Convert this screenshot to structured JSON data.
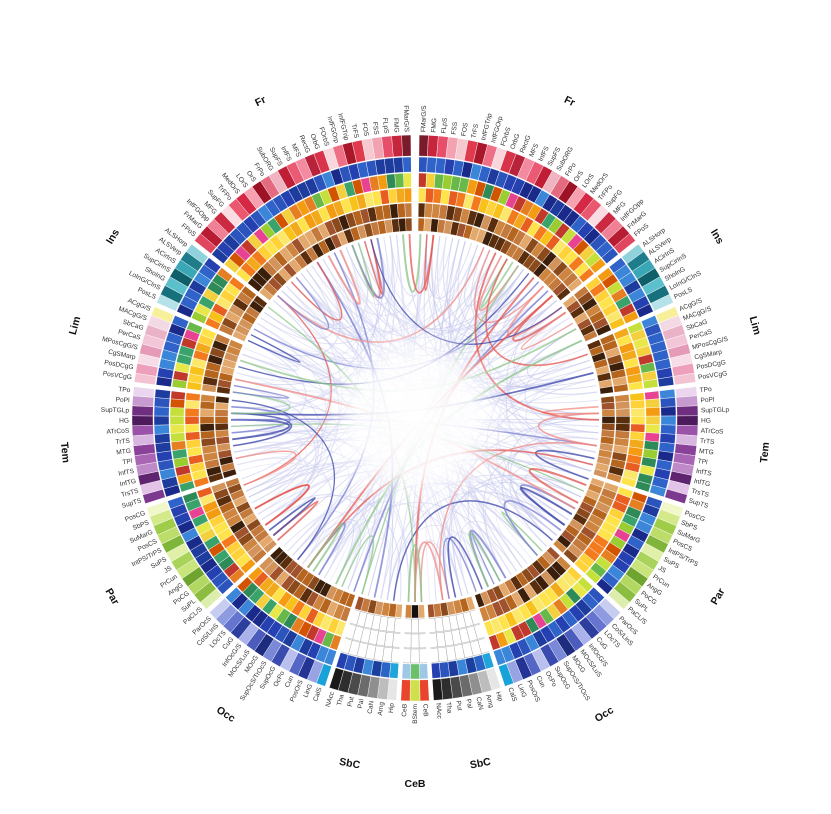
{
  "diagram": {
    "type": "connectogram",
    "lobes": [
      {
        "key": "fr_r",
        "label": "Fr",
        "side": "right",
        "color": "#e84d6a",
        "regions": [
          "FMarG/S",
          "FMG",
          "FLpS",
          "FSS",
          "FOS",
          "TrFS",
          "InfFGTrip",
          "InfFGOrp",
          "FOrbS",
          "OrbG",
          "RectG",
          "MFS",
          "InfFS",
          "SupFS",
          "SubORG",
          "FrPo",
          "OrS",
          "LOrS",
          "MedOrS",
          "TrFPo",
          "SupFG",
          "MFG",
          "InfFGOpp",
          "FrMarG",
          "FPoS"
        ],
        "palette": [
          "#7a1b2b",
          "#c6253c",
          "#e84d6a",
          "#f3a2b1",
          "#f6c9d1",
          "#e03a4e",
          "#a8172a",
          "#ef6f86",
          "#f9d6dc",
          "#d8334a",
          "#b8223a",
          "#f28ba0",
          "#ea5a73",
          "#c01e36",
          "#f0b4c0",
          "#e46a80",
          "#9e1226",
          "#f7a0b0",
          "#d42845",
          "#e9586f",
          "#fbdce2",
          "#cc2a42",
          "#f08096",
          "#b81c33",
          "#e0475f"
        ]
      },
      {
        "key": "ins_r",
        "label": "Ins",
        "side": "right",
        "color": "#2b8e9e",
        "regions": [
          "ALSHorp",
          "ALSVerp",
          "ACirInS",
          "SupCirInS",
          "ShoInG",
          "LoInG/CInS",
          "PosLS"
        ],
        "palette": [
          "#8fd2dc",
          "#1f7d8b",
          "#3aa7b7",
          "#0f5f6b",
          "#5cc0cc",
          "#17707d",
          "#b4e2e8"
        ]
      },
      {
        "key": "lim_r",
        "label": "Lim",
        "side": "right",
        "color": "#e48aa9",
        "regions": [
          "ACgG/S",
          "MACgG/S",
          "SbCaG",
          "PerCaS",
          "MPosCgG/S",
          "CgSMarp",
          "PosDCgG",
          "PosVCgG"
        ],
        "palette": [
          "#f7ef9a",
          "#f3d9e3",
          "#eab2c6",
          "#f2c6d6",
          "#e59bb7",
          "#f6dde7",
          "#ed9fbb",
          "#f3c2d3"
        ]
      },
      {
        "key": "tem_r",
        "label": "Tem",
        "side": "right",
        "color": "#7b3b8c",
        "regions": [
          "TPo",
          "PoPl",
          "SupTGLp",
          "HG",
          "ATrCoS",
          "TrTS",
          "MTG",
          "TPl",
          "InfTS",
          "InfTG",
          "TrsTS",
          "SupTS"
        ],
        "palette": [
          "#ecd6ef",
          "#c79bd0",
          "#6f2e80",
          "#4e1a5e",
          "#9a53a9",
          "#d9b6df",
          "#8a4199",
          "#a866b5",
          "#bf8ac8",
          "#5f2470",
          "#e3c3e8",
          "#7c3a8e"
        ]
      },
      {
        "key": "par_r",
        "label": "Par",
        "side": "right",
        "color": "#8cc63f",
        "regions": [
          "PosCG",
          "SbPS",
          "SuMarG",
          "PosCS",
          "IntPS/TrPS",
          "SuPS",
          "JS",
          "PrCun",
          "AngG",
          "PoCG",
          "SuPL",
          "PaCL/S"
        ],
        "palette": [
          "#f0f7c9",
          "#d4e98a",
          "#9fcc49",
          "#bddd6a",
          "#7fb53a",
          "#e0f0a8",
          "#a9d35a",
          "#c8e47b",
          "#6fa42e",
          "#b3d861",
          "#8dbd40",
          "#dcedae"
        ]
      },
      {
        "key": "occ_r",
        "label": "Occ",
        "side": "right",
        "color": "#3d4fa8",
        "regions": [
          "ParOcS",
          "CoS/LinS",
          "LOcTS",
          "CuG",
          "InfOcG/S",
          "MOcS/LuS",
          "MOcG",
          "SupOcS/TrOcS",
          "SupOcG",
          "OcPo",
          "Cun",
          "PosOrS",
          "LinG",
          "CalS"
        ],
        "palette": [
          "#c7cdf0",
          "#8f9be0",
          "#6474cf",
          "#2d3f9e",
          "#a9b2ea",
          "#4b5cbd",
          "#1e2c80",
          "#7a88d8",
          "#3a4bb0",
          "#b9c0ed",
          "#5566c5",
          "#233494",
          "#98a3e3",
          "#17a3d9"
        ]
      },
      {
        "key": "sbc_r",
        "label": "SbC",
        "side": "right",
        "color": "#555555",
        "regions": [
          "Hip",
          "Amg",
          "CaN",
          "Pal",
          "Put",
          "Tha",
          "NAcc"
        ],
        "palette": [
          "#e6e6e6",
          "#bdbdbd",
          "#8f8f8f",
          "#6b6b6b",
          "#4a4a4a",
          "#2e2e2e",
          "#1a1a1a"
        ]
      },
      {
        "key": "cer",
        "label": "CeB",
        "side": "bottom",
        "color": "#e04a2a",
        "regions": [
          "CeB",
          "BStem",
          "CeB"
        ],
        "palette": [
          "#e8452c",
          "#cfe04a",
          "#e8452c"
        ]
      },
      {
        "key": "sbc_l",
        "label": "SbC",
        "side": "left",
        "color": "#555555",
        "regions": [
          "Hip",
          "Amg",
          "CaN",
          "Pal",
          "Put",
          "Tha",
          "NAcc"
        ],
        "palette": [
          "#e6e6e6",
          "#bdbdbd",
          "#8f8f8f",
          "#6b6b6b",
          "#4a4a4a",
          "#2e2e2e",
          "#1a1a1a"
        ]
      },
      {
        "key": "occ_l",
        "label": "Occ",
        "side": "left",
        "color": "#3d4fa8",
        "regions": [
          "CalS",
          "LinG",
          "PosOrS",
          "Cun",
          "OcPo",
          "SupOcG",
          "SupOcS/TrOcS",
          "MOcG",
          "MOcS/LuS",
          "InfOcG/S",
          "CuG",
          "LOcTS",
          "CoS/LinS",
          "ParOcS"
        ],
        "palette": [
          "#17a3d9",
          "#98a3e3",
          "#233494",
          "#5566c5",
          "#b9c0ed",
          "#3a4bb0",
          "#7a88d8",
          "#1e2c80",
          "#4b5cbd",
          "#a9b2ea",
          "#2d3f9e",
          "#6474cf",
          "#8f9be0",
          "#c7cdf0"
        ]
      },
      {
        "key": "par_l",
        "label": "Par",
        "side": "left",
        "color": "#8cc63f",
        "regions": [
          "PaCL/S",
          "SuPL",
          "PoCG",
          "AngG",
          "PrCun",
          "JS",
          "SuPS",
          "IntPS/TrPS",
          "PosCS",
          "SuMarG",
          "SbPS",
          "PosCG"
        ],
        "palette": [
          "#dcedae",
          "#8dbd40",
          "#b3d861",
          "#6fa42e",
          "#c8e47b",
          "#a9d35a",
          "#e0f0a8",
          "#7fb53a",
          "#bddd6a",
          "#9fcc49",
          "#d4e98a",
          "#f0f7c9"
        ]
      },
      {
        "key": "tem_l",
        "label": "Tem",
        "side": "left",
        "color": "#7b3b8c",
        "regions": [
          "SupTS",
          "TrsTS",
          "InfTG",
          "InfTS",
          "TPl",
          "MTG",
          "TrTS",
          "ATrCoS",
          "HG",
          "SupTGLp",
          "PoPl",
          "TPo"
        ],
        "palette": [
          "#7c3a8e",
          "#e3c3e8",
          "#5f2470",
          "#bf8ac8",
          "#a866b5",
          "#8a4199",
          "#d9b6df",
          "#9a53a9",
          "#4e1a5e",
          "#6f2e80",
          "#c79bd0",
          "#ecd6ef"
        ]
      },
      {
        "key": "lim_l",
        "label": "Lim",
        "side": "left",
        "color": "#e48aa9",
        "regions": [
          "PosVCgG",
          "PosDCgG",
          "CgSMarp",
          "MPosCgG/S",
          "PerCaS",
          "SbCaG",
          "MACgG/S",
          "ACgG/S"
        ],
        "palette": [
          "#f3c2d3",
          "#ed9fbb",
          "#f6dde7",
          "#e59bb7",
          "#f2c6d6",
          "#eab2c6",
          "#f3d9e3",
          "#f7ef9a"
        ]
      },
      {
        "key": "ins_l",
        "label": "Ins",
        "side": "left",
        "color": "#2b8e9e",
        "regions": [
          "PosLS",
          "LoInG/CInS",
          "ShoInG",
          "SupCirInS",
          "ACirInS",
          "ALSVerp",
          "ALSHorp"
        ],
        "palette": [
          "#b4e2e8",
          "#17707d",
          "#5cc0cc",
          "#0f5f6b",
          "#3aa7b7",
          "#1f7d8b",
          "#8fd2dc"
        ]
      },
      {
        "key": "fr_l",
        "label": "Fr",
        "side": "left",
        "color": "#e84d6a",
        "regions": [
          "FPoS",
          "FrMarG",
          "InfFGOpp",
          "MFG",
          "SupFG",
          "TrFPo",
          "MedOrS",
          "LOrS",
          "OrS",
          "FrPo",
          "SubORG",
          "SupFS",
          "InfFS",
          "MFS",
          "RectG",
          "OrbG",
          "FOrbS",
          "InfFGOrp",
          "InfFGTrip",
          "TrFS",
          "FOS",
          "FSS",
          "FLpS",
          "FMG",
          "FMarG/S"
        ],
        "palette": [
          "#e0475f",
          "#b81c33",
          "#f08096",
          "#cc2a42",
          "#fbdce2",
          "#e9586f",
          "#d42845",
          "#f7a0b0",
          "#9e1226",
          "#e46a80",
          "#f0b4c0",
          "#c01e36",
          "#ea5a73",
          "#f28ba0",
          "#b8223a",
          "#d8334a",
          "#f9d6dc",
          "#ef6f86",
          "#a8172a",
          "#e03a4e",
          "#f6c9d1",
          "#f3a2b1",
          "#e84d6a",
          "#c6253c",
          "#7a1b2b"
        ]
      }
    ],
    "ring_palettes": {
      "area": [
        "#1a2a8a",
        "#2540b0",
        "#2f63c9",
        "#3b86d8",
        "#1e3c9e",
        "#2b55bd"
      ],
      "thickness": [
        "#2e8b57",
        "#3aa36b",
        "#69b84a",
        "#9acd32",
        "#c5e03b",
        "#e8e84a",
        "#f4d03f",
        "#f39c12",
        "#e67e22",
        "#d35400",
        "#e84393",
        "#c0392b"
      ],
      "curvature": [
        "#ffe34a",
        "#f9c21a",
        "#f59b12",
        "#f37b1d",
        "#e85d20",
        "#ffd23a",
        "#f2aa1c",
        "#fbe76a"
      ],
      "degree": [
        "#8b4a1c",
        "#b5651d",
        "#cd853f",
        "#5a2d0c",
        "#a0522d",
        "#d2945b",
        "#3b1f0a",
        "#c47a3d",
        "#e3a86b"
      ]
    },
    "connections": {
      "weak_colors": [
        "#c7c9ec",
        "#d4d6f2",
        "#bfc3ea",
        "#e0e1f6"
      ],
      "strong_colors": [
        "#3a44a8",
        "#e5574f",
        "#8fc88a",
        "#7a7fd0",
        "#f08a84"
      ]
    }
  }
}
